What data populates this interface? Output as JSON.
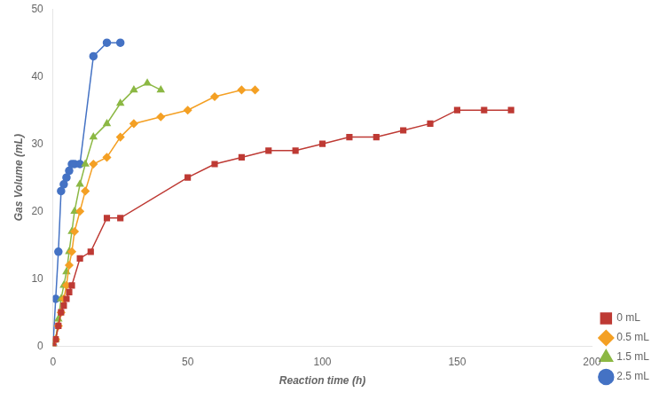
{
  "chart_data": {
    "type": "line",
    "xlabel": "Reaction time (h)",
    "ylabel": "Gas Volume (mL)",
    "xlim": [
      0,
      200
    ],
    "ylim": [
      0,
      50
    ],
    "xticks": [
      0,
      50,
      100,
      150,
      200
    ],
    "yticks": [
      0,
      10,
      20,
      30,
      40,
      50
    ],
    "grid": false,
    "legend": "lower right",
    "series": [
      {
        "name": "0 mL",
        "color": "#BE3A34",
        "marker": "square",
        "x": [
          0,
          1,
          2,
          3,
          4,
          5,
          6,
          7,
          10,
          14,
          20,
          25,
          50,
          60,
          70,
          80,
          90,
          100,
          110,
          120,
          130,
          140,
          150,
          160,
          170
        ],
        "values": [
          0,
          1,
          3,
          5,
          6,
          7,
          8,
          9,
          13,
          14,
          19,
          19,
          25,
          27,
          28,
          29,
          29,
          30,
          31,
          31,
          32,
          33,
          35,
          35,
          35
        ]
      },
      {
        "name": "0.5 mL",
        "color": "#F4A024",
        "marker": "diamond",
        "x": [
          0,
          1,
          2,
          3,
          4,
          5,
          6,
          7,
          8,
          10,
          12,
          15,
          20,
          25,
          30,
          40,
          50,
          60,
          70,
          75
        ],
        "values": [
          0,
          1,
          3,
          5,
          7,
          9,
          12,
          14,
          17,
          20,
          23,
          27,
          28,
          31,
          33,
          34,
          35,
          37,
          38,
          38
        ]
      },
      {
        "name": "1.5 mL",
        "color": "#8CB844",
        "marker": "triangle",
        "x": [
          0,
          1,
          2,
          3,
          4,
          5,
          6,
          7,
          8,
          10,
          12,
          15,
          20,
          25,
          30,
          35,
          40
        ],
        "values": [
          0,
          1,
          4,
          7,
          9,
          11,
          14,
          17,
          20,
          24,
          27,
          31,
          33,
          36,
          38,
          39,
          38
        ]
      },
      {
        "name": "2.5 mL",
        "color": "#4472C4",
        "marker": "circle",
        "x": [
          0,
          1,
          2,
          3,
          4,
          5,
          6,
          7,
          8,
          10,
          15,
          20,
          25
        ],
        "values": [
          0,
          7,
          14,
          23,
          24,
          25,
          26,
          27,
          27,
          27,
          43,
          45,
          45
        ]
      }
    ]
  }
}
